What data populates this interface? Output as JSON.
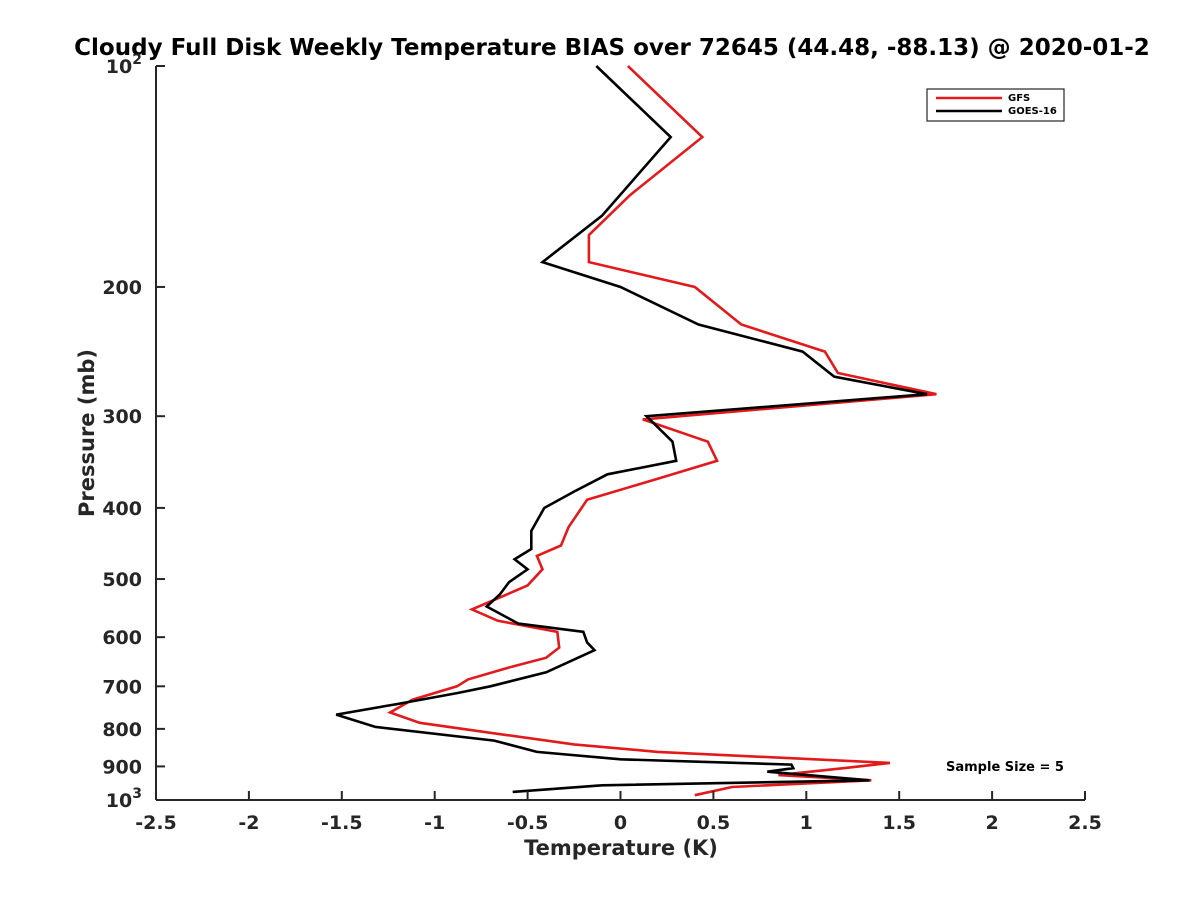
{
  "chart_data": {
    "type": "line",
    "title": "Cloudy Full Disk Weekly Temperature BIAS over 72645 (44.48, -88.13) @ 2020-01-2",
    "xlabel": "Temperature (K)",
    "ylabel": "Pressure (mb)",
    "xlim": [
      -2.5,
      2.5
    ],
    "ylim": [
      100,
      1000
    ],
    "yscale": "log",
    "y_reversed": true,
    "grid": false,
    "legend_position": "top-right",
    "x_ticks": [
      {
        "value": -2.5,
        "label": "-2.5"
      },
      {
        "value": -2,
        "label": "-2"
      },
      {
        "value": -1.5,
        "label": "-1.5"
      },
      {
        "value": -1,
        "label": "-1"
      },
      {
        "value": -0.5,
        "label": "-0.5"
      },
      {
        "value": 0,
        "label": "0"
      },
      {
        "value": 0.5,
        "label": "0.5"
      },
      {
        "value": 1,
        "label": "1"
      },
      {
        "value": 1.5,
        "label": "1.5"
      },
      {
        "value": 2,
        "label": "2"
      },
      {
        "value": 2.5,
        "label": "2.5"
      }
    ],
    "y_ticks": [
      {
        "value": 100,
        "base": "10",
        "exp": "2"
      },
      {
        "value": 200,
        "label": "200"
      },
      {
        "value": 300,
        "label": "300"
      },
      {
        "value": 400,
        "label": "400"
      },
      {
        "value": 500,
        "label": "500"
      },
      {
        "value": 600,
        "label": "600"
      },
      {
        "value": 700,
        "label": "700"
      },
      {
        "value": 800,
        "label": "800"
      },
      {
        "value": 900,
        "label": "900"
      },
      {
        "value": 1000,
        "base": "10",
        "exp": "3"
      }
    ],
    "series": [
      {
        "name": "GFS",
        "color": "#e31a1c",
        "points": [
          [
            0.04,
            100
          ],
          [
            0.44,
            125
          ],
          [
            0.05,
            150
          ],
          [
            -0.17,
            170
          ],
          [
            -0.17,
            185
          ],
          [
            0.4,
            200
          ],
          [
            0.65,
            225
          ],
          [
            1.1,
            245
          ],
          [
            1.17,
            262
          ],
          [
            1.7,
            280
          ],
          [
            0.12,
            303
          ],
          [
            0.47,
            325
          ],
          [
            0.52,
            345
          ],
          [
            0.2,
            365
          ],
          [
            -0.18,
            390
          ],
          [
            -0.28,
            425
          ],
          [
            -0.32,
            450
          ],
          [
            -0.45,
            465
          ],
          [
            -0.42,
            485
          ],
          [
            -0.5,
            510
          ],
          [
            -0.65,
            530
          ],
          [
            -0.8,
            550
          ],
          [
            -0.66,
            570
          ],
          [
            -0.34,
            590
          ],
          [
            -0.33,
            620
          ],
          [
            -0.4,
            640
          ],
          [
            -0.6,
            660
          ],
          [
            -0.82,
            685
          ],
          [
            -0.88,
            700
          ],
          [
            -1.12,
            730
          ],
          [
            -1.24,
            760
          ],
          [
            -1.08,
            785
          ],
          [
            -0.7,
            810
          ],
          [
            -0.25,
            840
          ],
          [
            0.2,
            860
          ],
          [
            1.45,
            890
          ],
          [
            1.2,
            905
          ],
          [
            0.85,
            925
          ],
          [
            1.35,
            940
          ],
          [
            0.6,
            960
          ],
          [
            0.4,
            985
          ]
        ]
      },
      {
        "name": "GOES-16",
        "color": "#000000",
        "points": [
          [
            -0.13,
            100
          ],
          [
            0.27,
            125
          ],
          [
            -0.1,
            160
          ],
          [
            -0.42,
            185
          ],
          [
            0.0,
            200
          ],
          [
            0.42,
            225
          ],
          [
            0.98,
            245
          ],
          [
            1.15,
            265
          ],
          [
            1.65,
            280
          ],
          [
            0.14,
            300
          ],
          [
            0.28,
            325
          ],
          [
            0.3,
            345
          ],
          [
            -0.07,
            360
          ],
          [
            -0.25,
            380
          ],
          [
            -0.41,
            400
          ],
          [
            -0.48,
            430
          ],
          [
            -0.48,
            455
          ],
          [
            -0.57,
            470
          ],
          [
            -0.5,
            485
          ],
          [
            -0.6,
            505
          ],
          [
            -0.65,
            525
          ],
          [
            -0.72,
            545
          ],
          [
            -0.55,
            575
          ],
          [
            -0.2,
            590
          ],
          [
            -0.18,
            610
          ],
          [
            -0.14,
            625
          ],
          [
            -0.4,
            670
          ],
          [
            -0.7,
            700
          ],
          [
            -0.88,
            715
          ],
          [
            -1.2,
            740
          ],
          [
            -1.53,
            765
          ],
          [
            -1.32,
            795
          ],
          [
            -0.68,
            830
          ],
          [
            -0.45,
            860
          ],
          [
            0.0,
            880
          ],
          [
            0.92,
            895
          ],
          [
            0.93,
            905
          ],
          [
            0.79,
            915
          ],
          [
            1.34,
            940
          ],
          [
            -0.1,
            955
          ],
          [
            -0.58,
            975
          ]
        ]
      }
    ],
    "annotations": [
      {
        "text": "Sample Size = 5"
      }
    ]
  }
}
